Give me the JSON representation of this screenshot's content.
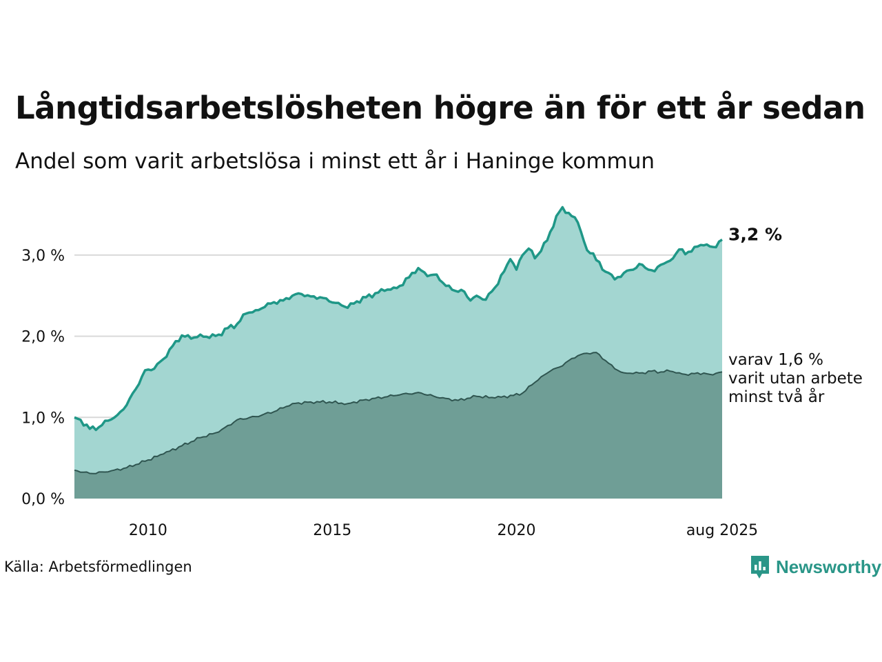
{
  "title": "Långtidsarbetslösheten högre än för ett år sedan",
  "subtitle": "Andel som varit arbetslösa i minst ett år i Haninge kommun",
  "source": "Källa: Arbetsförmedlingen",
  "brand": {
    "name": "Newsworthy",
    "icon": "newsworthy-chart-bubble-icon",
    "color": "#2a9688"
  },
  "colors": {
    "series1_area": "#a3d6d1",
    "series1_line": "#1f9787",
    "series2_area": "#6f9e96",
    "series2_line": "#2f5550",
    "grid": "#d9d9d9"
  },
  "chart_data": {
    "type": "area",
    "title": "Långtidsarbetslösheten högre än för ett år sedan",
    "subtitle": "Andel som varit arbetslösa i minst ett år i Haninge kommun",
    "xlabel": "",
    "ylabel": "",
    "x_start": "2008-01",
    "x_end": "2025-08",
    "x_step": "month",
    "ylim": [
      0,
      3.6
    ],
    "yticks": [
      0,
      1,
      2,
      3
    ],
    "ytick_labels": [
      "0,0 %",
      "1,0 %",
      "2,0 %",
      "3,0 %"
    ],
    "xticks": [
      "2010-01",
      "2015-01",
      "2020-01",
      "2025-08"
    ],
    "xtick_labels": [
      "2010",
      "2015",
      "2020",
      "aug 2025"
    ],
    "grid": true,
    "end_labels": {
      "series1": "3,2 %",
      "series2_lines": [
        "varav 1,6 %",
        "varit utan arbete",
        "minst två år"
      ]
    },
    "series": [
      {
        "key": "series1",
        "keypoints": [
          [
            "2008-01",
            1.0
          ],
          [
            "2008-03",
            0.97
          ],
          [
            "2008-06",
            0.86
          ],
          [
            "2008-09",
            0.88
          ],
          [
            "2008-12",
            0.96
          ],
          [
            "2009-03",
            1.03
          ],
          [
            "2009-06",
            1.15
          ],
          [
            "2009-09",
            1.35
          ],
          [
            "2009-12",
            1.58
          ],
          [
            "2010-03",
            1.6
          ],
          [
            "2010-06",
            1.72
          ],
          [
            "2010-09",
            1.88
          ],
          [
            "2010-12",
            2.01
          ],
          [
            "2011-03",
            1.97
          ],
          [
            "2011-06",
            2.02
          ],
          [
            "2011-09",
            1.98
          ],
          [
            "2011-12",
            2.02
          ],
          [
            "2012-03",
            2.1
          ],
          [
            "2012-06",
            2.15
          ],
          [
            "2012-09",
            2.28
          ],
          [
            "2012-12",
            2.32
          ],
          [
            "2013-03",
            2.36
          ],
          [
            "2013-06",
            2.42
          ],
          [
            "2013-09",
            2.44
          ],
          [
            "2013-12",
            2.5
          ],
          [
            "2014-03",
            2.52
          ],
          [
            "2014-06",
            2.49
          ],
          [
            "2014-09",
            2.48
          ],
          [
            "2014-12",
            2.43
          ],
          [
            "2015-03",
            2.41
          ],
          [
            "2015-06",
            2.35
          ],
          [
            "2015-09",
            2.43
          ],
          [
            "2015-12",
            2.48
          ],
          [
            "2016-03",
            2.53
          ],
          [
            "2016-06",
            2.56
          ],
          [
            "2016-09",
            2.6
          ],
          [
            "2016-12",
            2.63
          ],
          [
            "2017-03",
            2.78
          ],
          [
            "2017-05",
            2.84
          ],
          [
            "2017-08",
            2.74
          ],
          [
            "2017-11",
            2.76
          ],
          [
            "2018-02",
            2.62
          ],
          [
            "2018-05",
            2.56
          ],
          [
            "2018-08",
            2.55
          ],
          [
            "2018-10",
            2.44
          ],
          [
            "2018-12",
            2.5
          ],
          [
            "2019-03",
            2.45
          ],
          [
            "2019-06",
            2.6
          ],
          [
            "2019-09",
            2.8
          ],
          [
            "2019-11",
            2.95
          ],
          [
            "2020-01",
            2.82
          ],
          [
            "2020-03",
            3.0
          ],
          [
            "2020-05",
            3.08
          ],
          [
            "2020-07",
            2.96
          ],
          [
            "2020-09",
            3.05
          ],
          [
            "2020-11",
            3.18
          ],
          [
            "2021-02",
            3.48
          ],
          [
            "2021-04",
            3.59
          ],
          [
            "2021-06",
            3.52
          ],
          [
            "2021-09",
            3.4
          ],
          [
            "2021-12",
            3.06
          ],
          [
            "2022-02",
            3.02
          ],
          [
            "2022-05",
            2.82
          ],
          [
            "2022-07",
            2.78
          ],
          [
            "2022-09",
            2.7
          ],
          [
            "2022-12",
            2.78
          ],
          [
            "2023-03",
            2.82
          ],
          [
            "2023-05",
            2.89
          ],
          [
            "2023-08",
            2.82
          ],
          [
            "2023-10",
            2.8
          ],
          [
            "2023-12",
            2.88
          ],
          [
            "2024-03",
            2.93
          ],
          [
            "2024-06",
            3.07
          ],
          [
            "2024-08",
            3.01
          ],
          [
            "2024-11",
            3.1
          ],
          [
            "2025-02",
            3.12
          ],
          [
            "2025-05",
            3.1
          ],
          [
            "2025-08",
            3.19
          ]
        ],
        "end_value": 3.2
      },
      {
        "key": "series2",
        "keypoints": [
          [
            "2008-01",
            0.35
          ],
          [
            "2008-06",
            0.31
          ],
          [
            "2008-12",
            0.33
          ],
          [
            "2009-06",
            0.38
          ],
          [
            "2009-12",
            0.46
          ],
          [
            "2010-06",
            0.55
          ],
          [
            "2010-12",
            0.65
          ],
          [
            "2011-06",
            0.75
          ],
          [
            "2011-12",
            0.82
          ],
          [
            "2012-06",
            0.97
          ],
          [
            "2012-12",
            1.01
          ],
          [
            "2013-06",
            1.07
          ],
          [
            "2013-12",
            1.17
          ],
          [
            "2014-06",
            1.19
          ],
          [
            "2014-12",
            1.19
          ],
          [
            "2015-06",
            1.17
          ],
          [
            "2015-12",
            1.22
          ],
          [
            "2016-06",
            1.25
          ],
          [
            "2016-12",
            1.29
          ],
          [
            "2017-06",
            1.3
          ],
          [
            "2017-12",
            1.24
          ],
          [
            "2018-06",
            1.21
          ],
          [
            "2018-12",
            1.26
          ],
          [
            "2019-06",
            1.24
          ],
          [
            "2019-12",
            1.27
          ],
          [
            "2020-03",
            1.3
          ],
          [
            "2020-06",
            1.4
          ],
          [
            "2020-09",
            1.5
          ],
          [
            "2020-12",
            1.57
          ],
          [
            "2021-03",
            1.62
          ],
          [
            "2021-06",
            1.7
          ],
          [
            "2021-09",
            1.76
          ],
          [
            "2021-12",
            1.79
          ],
          [
            "2022-03",
            1.8
          ],
          [
            "2022-06",
            1.7
          ],
          [
            "2022-09",
            1.6
          ],
          [
            "2022-12",
            1.55
          ],
          [
            "2023-03",
            1.54
          ],
          [
            "2023-06",
            1.55
          ],
          [
            "2023-09",
            1.57
          ],
          [
            "2023-12",
            1.56
          ],
          [
            "2024-03",
            1.57
          ],
          [
            "2024-06",
            1.55
          ],
          [
            "2024-09",
            1.52
          ],
          [
            "2024-12",
            1.55
          ],
          [
            "2025-04",
            1.53
          ],
          [
            "2025-08",
            1.56
          ]
        ],
        "end_value": 1.6
      }
    ]
  }
}
